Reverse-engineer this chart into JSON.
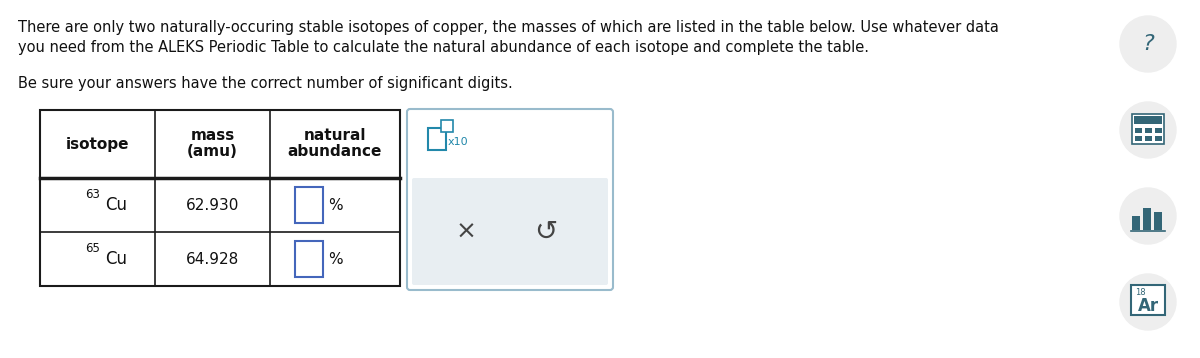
{
  "title_line1": "There are only two naturally-occuring stable isotopes of copper, the masses of which are listed in the table below. Use whatever data",
  "title_line2": "you need from the ALEKS Periodic Table to calculate the natural abundance of each isotope and complete the table.",
  "subtitle": "Be sure your answers have the correct number of significant digits.",
  "isotope_superscripts": [
    "63",
    "65"
  ],
  "isotope_elements": [
    "Cu",
    "Cu"
  ],
  "masses": [
    "62.930",
    "64.928"
  ],
  "bg_color": "#ffffff",
  "table_border_color": "#1a1a1a",
  "input_box_border": "#4466bb",
  "keypad_border": "#99bbcc",
  "keypad_bg": "#e8eef2",
  "x10_color": "#2288aa",
  "symbol_color": "#444444",
  "right_icon_bg": "#eeeeee",
  "right_icon_fg": "#336677",
  "text_color": "#111111",
  "font_size_body": 10.5,
  "font_size_table_header": 11,
  "font_size_table_data": 11
}
